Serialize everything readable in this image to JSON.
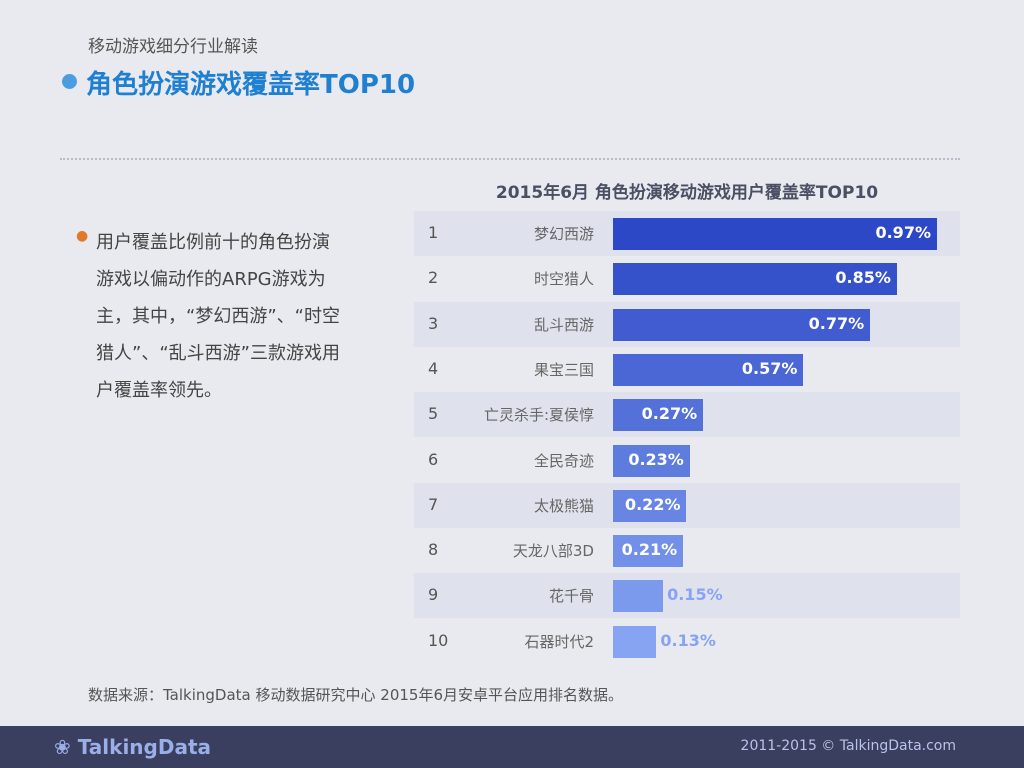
{
  "header": {
    "subtitle": "移动游戏细分行业解读",
    "title": "角色扮演游戏覆盖率TOP10"
  },
  "description": "用户覆盖比例前十的角色扮演游戏以偏动作的ARPG游戏为主，其中，“梦幻西游”、“时空猎人”、“乱斗西游”三款游戏用户覆盖率领先。",
  "chart_data": {
    "type": "bar",
    "orientation": "horizontal",
    "title": "2015年6月 角色扮演移动游戏用户覆盖率TOP10",
    "ranks": [
      "1",
      "2",
      "3",
      "4",
      "5",
      "6",
      "7",
      "8",
      "9",
      "10"
    ],
    "categories": [
      "梦幻西游",
      "时空猎人",
      "乱斗西游",
      "果宝三国",
      "亡灵杀手:夏侯惇",
      "全民奇迹",
      "太极熊猫",
      "天龙八部3D",
      "花千骨",
      "石器时代2"
    ],
    "values": [
      0.97,
      0.85,
      0.77,
      0.57,
      0.27,
      0.23,
      0.22,
      0.21,
      0.15,
      0.13
    ],
    "labels": [
      "0.97%",
      "0.85%",
      "0.77%",
      "0.57%",
      "0.27%",
      "0.23%",
      "0.22%",
      "0.21%",
      "0.15%",
      "0.13%"
    ],
    "unit": "%",
    "colors": {
      "dark": "#2c48c6",
      "light": "#86a4f2"
    }
  },
  "source": "数据来源：TalkingData 移动数据研究中心 2015年6月安卓平台应用排名数据。",
  "footer": {
    "logo": "TalkingData",
    "copyright": "2011-2015 © TalkingData.com"
  }
}
